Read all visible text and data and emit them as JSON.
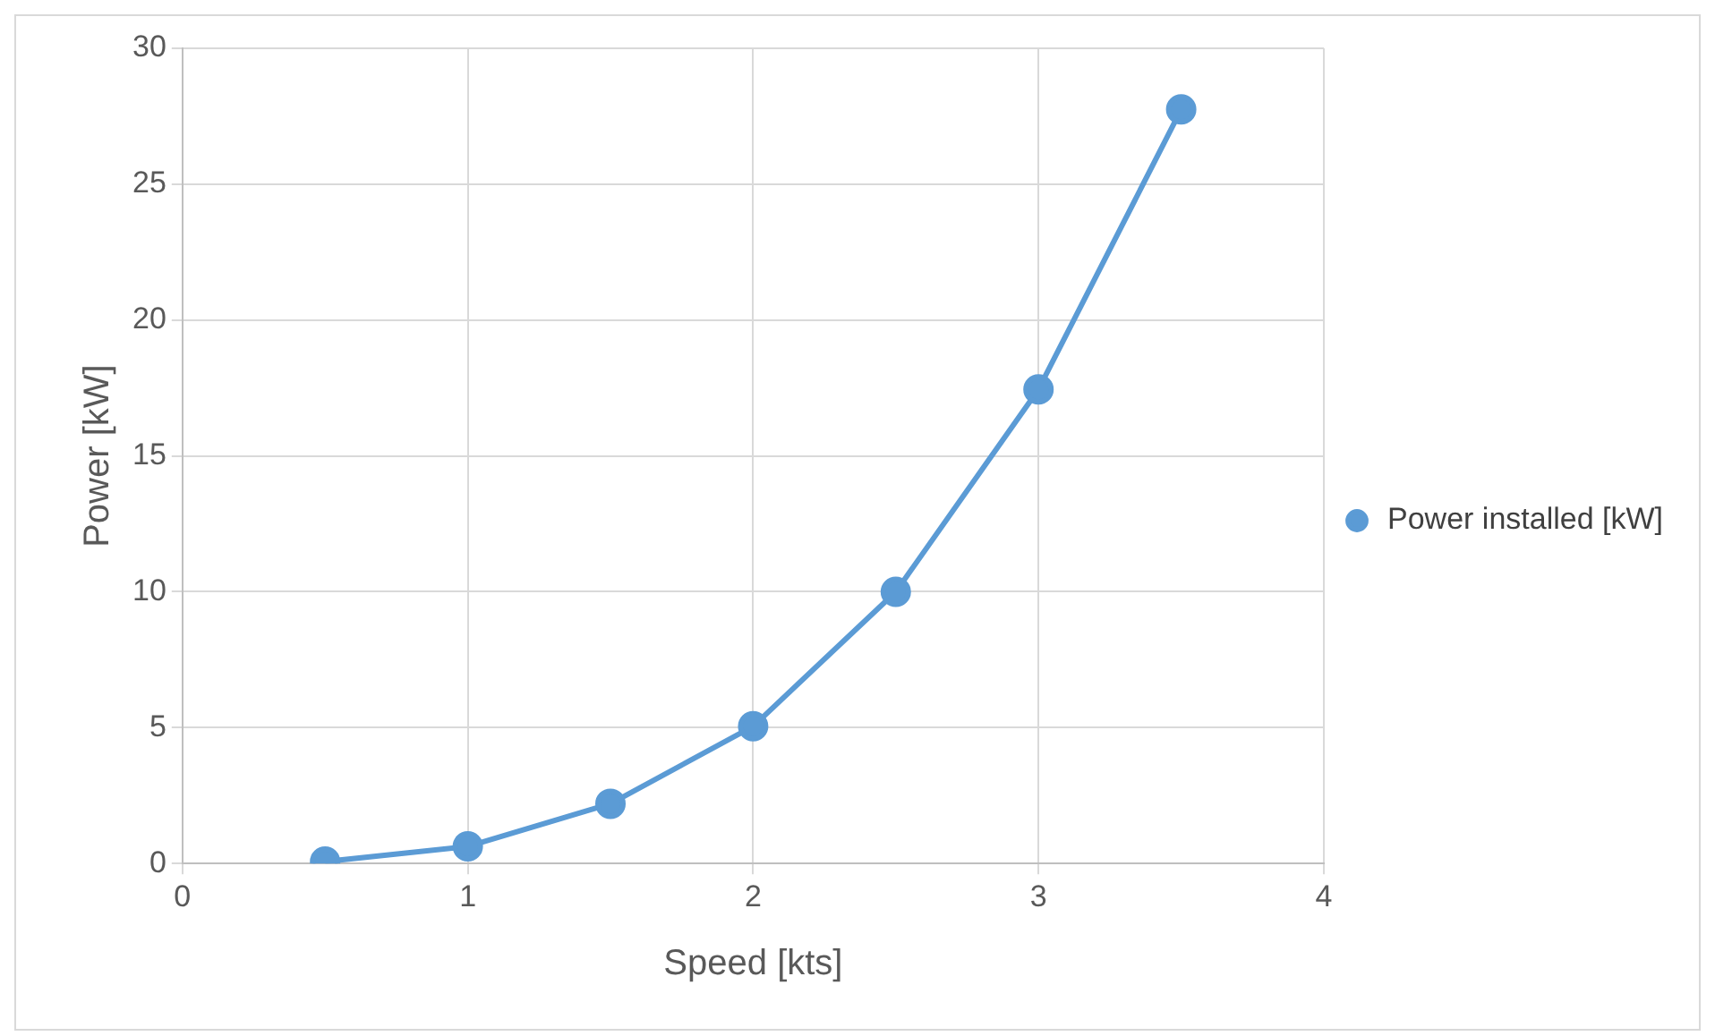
{
  "chart_data": {
    "type": "line",
    "xlabel": "Speed [kts]",
    "ylabel": "Power [kW]",
    "x": [
      0.5,
      1,
      1.5,
      2,
      2.5,
      3,
      3.5
    ],
    "series": [
      {
        "name": "Power installed [kW]",
        "color": "#5b9bd5",
        "values": [
          0.07,
          0.63,
          2.2,
          5.05,
          10.0,
          17.45,
          27.75
        ]
      }
    ],
    "xlim": [
      0,
      4
    ],
    "xticks": [
      0,
      1,
      2,
      3,
      4
    ],
    "ylim": [
      0,
      30
    ],
    "yticks": [
      0,
      5,
      10,
      15,
      20,
      25,
      30
    ],
    "grid": true,
    "legend": "right",
    "marker": "circle",
    "line_style": "solid"
  }
}
